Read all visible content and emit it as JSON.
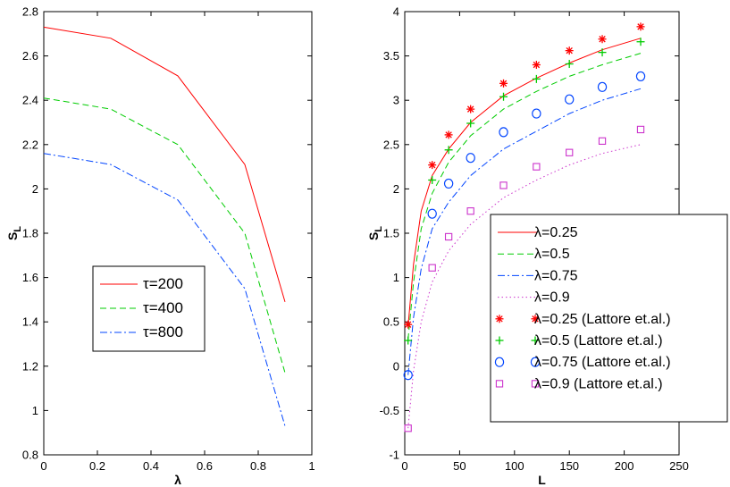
{
  "chart_data": [
    {
      "type": "line",
      "xlabel": "λ",
      "ylabel": "S",
      "ylabel_sub": "L",
      "xlim": [
        0,
        1
      ],
      "ylim": [
        0.8,
        2.8
      ],
      "xticks": [
        "0",
        "0.2",
        "0.4",
        "0.6",
        "0.8",
        "1"
      ],
      "yticks": [
        "0.8",
        "1",
        "1.2",
        "1.4",
        "1.6",
        "1.8",
        "2",
        "2.2",
        "2.4",
        "2.6",
        "2.8"
      ],
      "x": [
        0,
        0.25,
        0.5,
        0.75,
        0.9
      ],
      "legend_position": "center",
      "series": [
        {
          "name": "τ=200",
          "values": [
            2.73,
            2.68,
            2.51,
            2.11,
            1.49
          ],
          "color": "#ff0000",
          "style": "solid"
        },
        {
          "name": "τ=400",
          "values": [
            2.41,
            2.36,
            2.2,
            1.8,
            1.17
          ],
          "color": "#00cc00",
          "style": "dashed"
        },
        {
          "name": "τ=800",
          "values": [
            2.16,
            2.11,
            1.95,
            1.55,
            0.93
          ],
          "color": "#0044ff",
          "style": "dashdot"
        }
      ]
    },
    {
      "type": "line",
      "xlabel": "L",
      "ylabel": "S",
      "ylabel_sub": "L",
      "xlim": [
        0,
        250
      ],
      "ylim": [
        -1,
        4
      ],
      "xticks": [
        "0",
        "50",
        "100",
        "150",
        "200",
        "250"
      ],
      "yticks": [
        "-1",
        "-0.5",
        "0",
        "0.5",
        "1",
        "1.5",
        "2",
        "2.5",
        "3",
        "3.5",
        "4"
      ],
      "legend_position": "right",
      "series": [
        {
          "name": "λ=0.25",
          "kind": "line",
          "style": "solid",
          "color": "#ff0000",
          "x": [
            3,
            8,
            15,
            25,
            40,
            60,
            90,
            120,
            150,
            180,
            215
          ],
          "values": [
            0.45,
            1.15,
            1.75,
            2.15,
            2.45,
            2.75,
            3.05,
            3.25,
            3.42,
            3.57,
            3.7
          ]
        },
        {
          "name": "λ=0.5",
          "kind": "line",
          "style": "dashed",
          "color": "#00cc00",
          "x": [
            3,
            8,
            15,
            25,
            40,
            60,
            90,
            120,
            150,
            180,
            215
          ],
          "values": [
            0.3,
            0.95,
            1.55,
            1.95,
            2.3,
            2.6,
            2.9,
            3.1,
            3.27,
            3.4,
            3.53
          ]
        },
        {
          "name": "λ=0.75",
          "kind": "line",
          "style": "dashdot",
          "color": "#0044ff",
          "x": [
            3,
            8,
            15,
            25,
            40,
            60,
            90,
            120,
            150,
            180,
            215
          ],
          "values": [
            -0.1,
            0.55,
            1.1,
            1.55,
            1.85,
            2.15,
            2.45,
            2.65,
            2.85,
            3.0,
            3.13
          ]
        },
        {
          "name": "λ=0.9",
          "kind": "line",
          "style": "dotted",
          "color": "#cc33cc",
          "x": [
            3,
            8,
            15,
            25,
            40,
            60,
            90,
            120,
            150,
            180,
            215
          ],
          "values": [
            -0.7,
            -0.05,
            0.5,
            0.95,
            1.3,
            1.6,
            1.9,
            2.1,
            2.27,
            2.4,
            2.5
          ]
        },
        {
          "name": "λ=0.25 (Lattore et.al.)",
          "kind": "marker",
          "marker": "star",
          "color": "#ff0000",
          "x": [
            3,
            25,
            40,
            60,
            90,
            120,
            150,
            180,
            215
          ],
          "values": [
            0.47,
            2.27,
            2.61,
            2.9,
            3.19,
            3.4,
            3.56,
            3.69,
            3.83
          ]
        },
        {
          "name": "λ=0.5 (Lattore et.al.)",
          "kind": "marker",
          "marker": "plus",
          "color": "#00cc00",
          "x": [
            3,
            25,
            40,
            60,
            90,
            120,
            150,
            180,
            215
          ],
          "values": [
            0.29,
            2.1,
            2.44,
            2.74,
            3.04,
            3.24,
            3.41,
            3.54,
            3.66
          ]
        },
        {
          "name": "λ=0.75 (Lattore et.al.)",
          "kind": "marker",
          "marker": "circle",
          "color": "#0044ff",
          "x": [
            3,
            25,
            40,
            60,
            90,
            120,
            150,
            180,
            215
          ],
          "values": [
            -0.1,
            1.72,
            2.06,
            2.35,
            2.64,
            2.85,
            3.01,
            3.15,
            3.27
          ]
        },
        {
          "name": "λ=0.9 (Lattore et.al.)",
          "kind": "marker",
          "marker": "square",
          "color": "#cc33cc",
          "x": [
            3,
            25,
            40,
            60,
            90,
            120,
            150,
            180,
            215
          ],
          "values": [
            -0.7,
            1.11,
            1.46,
            1.75,
            2.04,
            2.25,
            2.41,
            2.54,
            2.67
          ]
        }
      ]
    }
  ]
}
